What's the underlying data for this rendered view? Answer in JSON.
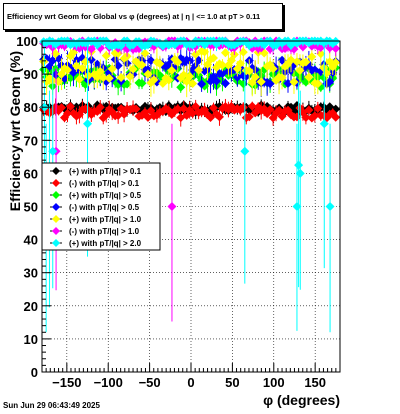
{
  "title": "Efficiency wrt Geom for Global vs φ (degrees) at |  η | <= 1.0 at pT > 0.11",
  "timestamp": "Sun Jun 29 06:43:49 2025",
  "chart_data": {
    "type": "scatter",
    "xlabel": "φ (degrees)",
    "ylabel": "Efficiency wrt Geom (%)",
    "xlim": [
      -180,
      180
    ],
    "ylim": [
      0,
      100
    ],
    "x_ticks": [
      -150,
      -100,
      -50,
      0,
      50,
      100,
      150
    ],
    "y_ticks": [
      0,
      10,
      20,
      30,
      40,
      50,
      60,
      70,
      80,
      90,
      100
    ],
    "grid": true,
    "legend_position": "left-middle",
    "series": [
      {
        "name": "(+) with pT/|q| > 0.1",
        "color": "#000000",
        "marker": "diamond",
        "level": 79.5,
        "spread": 1.2
      },
      {
        "name": "(-) with pT/|q| > 0.1",
        "color": "#ff0000",
        "marker": "diamond",
        "level": 78.5,
        "spread": 1.8
      },
      {
        "name": "(+) with pT/|q| > 0.5",
        "color": "#00ff00",
        "marker": "diamond",
        "level": 89.0,
        "spread": 3.0
      },
      {
        "name": "(-) with pT/|q| > 0.5",
        "color": "#0000ff",
        "marker": "diamond",
        "level": 91.0,
        "spread": 4.0
      },
      {
        "name": "(+) with pT/|q| > 1.0",
        "color": "#ffff00",
        "marker": "diamond",
        "level": 92.0,
        "spread": 5.0
      },
      {
        "name": "(-) with pT/|q| > 1.0",
        "color": "#ff00ff",
        "marker": "diamond",
        "level": 99.0,
        "spread": 1.5,
        "outliers": [
          [
            -163,
            66.7
          ],
          [
            -23,
            50.0
          ]
        ]
      },
      {
        "name": "(+) with pT/|q| > 2.0",
        "color": "#00ffff",
        "marker": "diamond",
        "level": 99.5,
        "spread": 1.0,
        "outliers": [
          [
            -177,
            80.0
          ],
          [
            -171,
            60.0
          ],
          [
            -167,
            66.7
          ],
          [
            -175,
            50.0
          ],
          [
            -125,
            75.0
          ],
          [
            65,
            66.7
          ],
          [
            128,
            50.0
          ],
          [
            130,
            62.5
          ],
          [
            132,
            60.0
          ],
          [
            161,
            75.0
          ],
          [
            168,
            50.0
          ]
        ]
      }
    ]
  }
}
